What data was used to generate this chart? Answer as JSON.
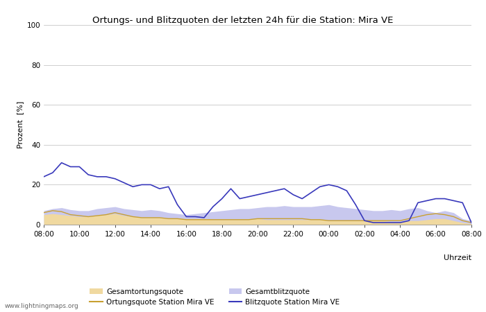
{
  "title": "Ortungs- und Blitzquoten der letzten 24h für die Station: Mira VE",
  "xlabel": "Uhrzeit",
  "ylabel": "Prozent  [%]",
  "ylim": [
    0,
    100
  ],
  "yticks": [
    0,
    20,
    40,
    60,
    80,
    100
  ],
  "xtick_labels": [
    "08:00",
    "10:00",
    "12:00",
    "14:00",
    "16:00",
    "18:00",
    "20:00",
    "22:00",
    "00:00",
    "02:00",
    "04:00",
    "06:00",
    "08:00"
  ],
  "background_color": "#ffffff",
  "watermark": "www.lightningmaps.org",
  "fill_ortung_color": "#f0d9a0",
  "fill_blitz_color": "#c8c8ee",
  "line_ortung_color": "#c8a030",
  "line_blitz_color": "#3838bb",
  "x": [
    0,
    1,
    2,
    3,
    4,
    5,
    6,
    7,
    8,
    9,
    10,
    11,
    12,
    13,
    14,
    15,
    16,
    17,
    18,
    19,
    20,
    21,
    22,
    23,
    24,
    25,
    26,
    27,
    28,
    29,
    30,
    31,
    32,
    33,
    34,
    35,
    36,
    37,
    38,
    39,
    40,
    41,
    42,
    43,
    44,
    45,
    46,
    47,
    48
  ],
  "gesamtortungsquote": [
    5.0,
    5.5,
    5.0,
    4.5,
    4.0,
    4.0,
    4.5,
    5.0,
    5.5,
    4.5,
    4.0,
    3.5,
    3.5,
    3.5,
    3.0,
    3.0,
    3.0,
    3.0,
    3.0,
    2.5,
    2.5,
    2.5,
    2.5,
    2.5,
    3.0,
    2.5,
    2.5,
    2.5,
    2.5,
    2.5,
    2.5,
    2.5,
    2.0,
    2.0,
    2.0,
    2.0,
    2.0,
    2.0,
    2.0,
    1.5,
    1.5,
    2.0,
    2.0,
    2.5,
    3.0,
    3.0,
    2.0,
    1.0,
    0.5
  ],
  "ortungsquote": [
    6.0,
    7.0,
    6.5,
    5.0,
    4.5,
    4.0,
    4.5,
    5.0,
    6.0,
    5.0,
    4.0,
    3.5,
    3.5,
    3.5,
    3.0,
    3.0,
    2.5,
    2.5,
    2.5,
    2.5,
    2.5,
    2.5,
    2.5,
    2.5,
    3.0,
    3.0,
    3.0,
    3.0,
    3.0,
    3.0,
    2.5,
    2.5,
    2.0,
    2.0,
    2.0,
    2.0,
    2.0,
    2.0,
    2.0,
    2.0,
    2.0,
    3.0,
    4.0,
    5.0,
    5.5,
    5.0,
    4.0,
    2.0,
    1.0
  ],
  "gesamtblitzquote": [
    7.0,
    8.0,
    8.5,
    7.5,
    7.0,
    7.0,
    8.0,
    8.5,
    9.0,
    8.0,
    7.5,
    7.0,
    7.5,
    7.0,
    6.0,
    5.5,
    5.0,
    5.5,
    6.0,
    6.5,
    7.0,
    7.5,
    8.0,
    8.0,
    8.5,
    9.0,
    9.0,
    9.5,
    9.0,
    9.0,
    9.0,
    9.5,
    10.0,
    9.0,
    8.5,
    8.0,
    7.5,
    7.0,
    7.0,
    7.5,
    7.0,
    8.0,
    8.5,
    7.0,
    6.0,
    7.0,
    6.0,
    3.0,
    2.0
  ],
  "blitzquote": [
    24.0,
    26.0,
    31.0,
    29.0,
    29.0,
    25.0,
    24.0,
    24.0,
    23.0,
    21.0,
    19.0,
    20.0,
    20.0,
    18.0,
    19.0,
    10.0,
    4.0,
    4.0,
    3.5,
    9.0,
    13.0,
    18.0,
    13.0,
    14.0,
    15.0,
    16.0,
    17.0,
    18.0,
    15.0,
    13.0,
    16.0,
    19.0,
    20.0,
    19.0,
    17.0,
    10.0,
    2.0,
    1.0,
    1.0,
    1.0,
    1.0,
    2.0,
    11.0,
    12.0,
    13.0,
    13.0,
    12.0,
    11.0,
    1.0
  ]
}
